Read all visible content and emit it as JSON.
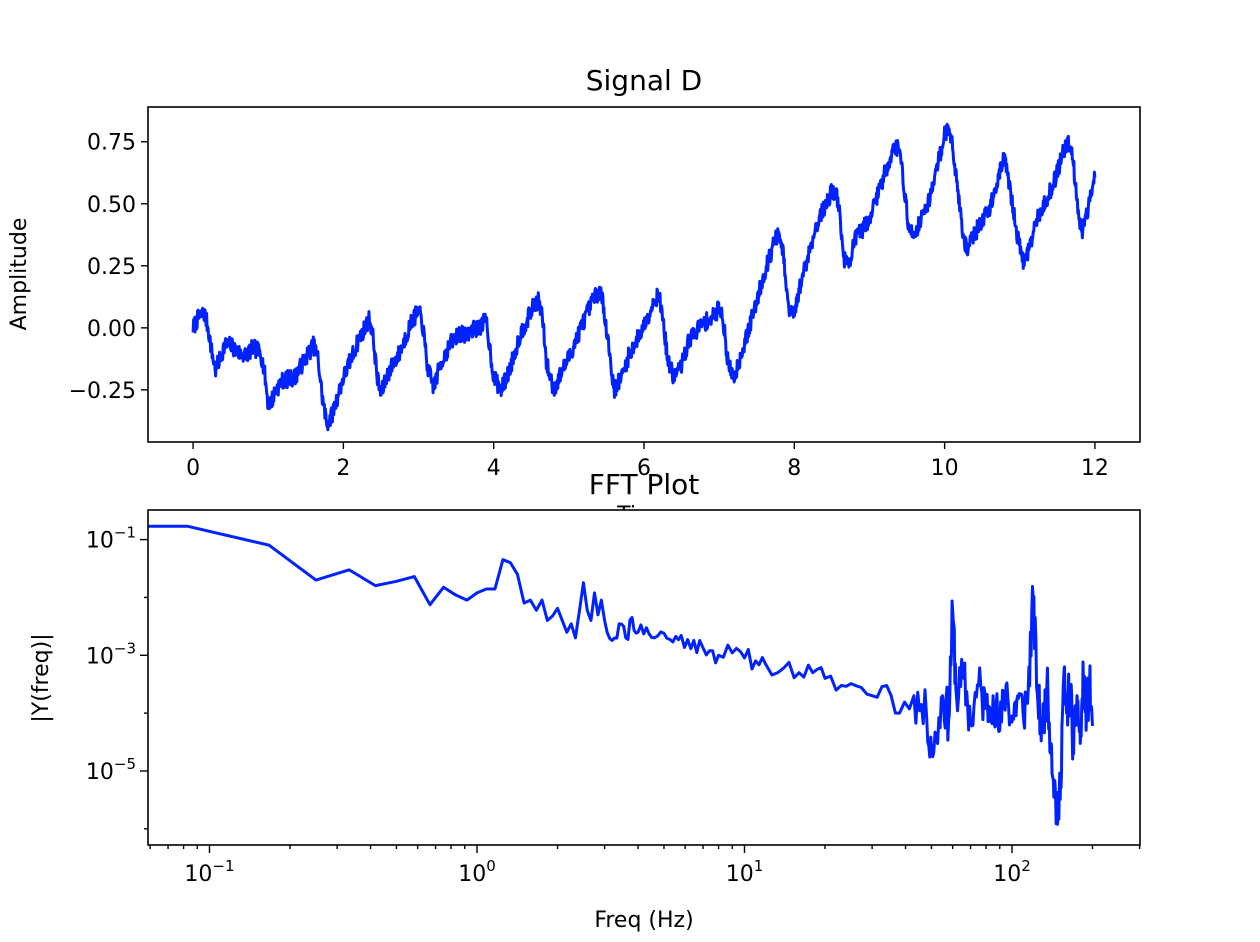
{
  "chart_data": [
    {
      "type": "line",
      "title": "Signal D",
      "xlabel": "Time",
      "ylabel": "Amplitude",
      "xlim": [
        -0.6,
        12.6
      ],
      "ylim": [
        -0.46,
        0.89
      ],
      "x_ticks": [
        0,
        2,
        4,
        6,
        8,
        10,
        12
      ],
      "x_tick_labels": [
        "0",
        "2",
        "4",
        "6",
        "8",
        "10",
        "12"
      ],
      "y_ticks": [
        -0.25,
        0,
        0.25,
        0.5,
        0.75
      ],
      "y_tick_labels": [
        "−0.25",
        "0.00",
        "0.25",
        "0.50",
        "0.75"
      ],
      "line_color": "#0022ff",
      "noise_band": 0.035,
      "series": [
        {
          "x": [
            0.0,
            0.07,
            0.15,
            0.2,
            0.25,
            0.3,
            0.35,
            0.42,
            0.5,
            0.6,
            0.7,
            0.8,
            0.9,
            0.95,
            1.0,
            1.05,
            1.1,
            1.2,
            1.35,
            1.5,
            1.6,
            1.66,
            1.72,
            1.78,
            1.85,
            2.0,
            2.2,
            2.35,
            2.4,
            2.45,
            2.5,
            2.57,
            2.65,
            2.75,
            2.9,
            3.0,
            3.05,
            3.12,
            3.2,
            3.3,
            3.45,
            3.55,
            3.6,
            3.7,
            3.8,
            3.9,
            4.0,
            4.1,
            4.2,
            4.35,
            4.55,
            4.6,
            4.65,
            4.7,
            4.8,
            4.9,
            5.0,
            5.2,
            5.35,
            5.42,
            5.48,
            5.55,
            5.6,
            5.7,
            5.8,
            6.0,
            6.15,
            6.2,
            6.25,
            6.32,
            6.4,
            6.5,
            6.6,
            6.75,
            6.95,
            7.0,
            7.05,
            7.12,
            7.2,
            7.3,
            7.4,
            7.6,
            7.75,
            7.8,
            7.85,
            7.92,
            8.0,
            8.1,
            8.3,
            8.5,
            8.55,
            8.6,
            8.66,
            8.72,
            8.8,
            9.0,
            9.2,
            9.33,
            9.4,
            9.45,
            9.52,
            9.6,
            9.8,
            10.0,
            10.05,
            10.1,
            10.2,
            10.25,
            10.3,
            10.4,
            10.6,
            10.75,
            10.8,
            10.85,
            10.95,
            11.05,
            11.1,
            11.25,
            11.45,
            11.6,
            11.65,
            11.7,
            11.77,
            11.82,
            11.9,
            12.0
          ],
          "y": [
            0.0,
            0.04,
            0.06,
            0.0,
            -0.1,
            -0.17,
            -0.13,
            -0.07,
            -0.07,
            -0.1,
            -0.11,
            -0.08,
            -0.1,
            -0.18,
            -0.31,
            -0.29,
            -0.25,
            -0.21,
            -0.2,
            -0.12,
            -0.07,
            -0.12,
            -0.28,
            -0.39,
            -0.35,
            -0.2,
            -0.05,
            0.04,
            -0.05,
            -0.2,
            -0.27,
            -0.2,
            -0.15,
            -0.1,
            0.02,
            0.07,
            0.02,
            -0.16,
            -0.24,
            -0.14,
            -0.05,
            -0.02,
            -0.03,
            -0.01,
            0.0,
            0.03,
            -0.2,
            -0.25,
            -0.18,
            -0.03,
            0.1,
            0.11,
            0.04,
            -0.14,
            -0.25,
            -0.18,
            -0.12,
            0.03,
            0.13,
            0.15,
            0.05,
            -0.12,
            -0.25,
            -0.2,
            -0.11,
            0.01,
            0.12,
            0.13,
            0.04,
            -0.14,
            -0.2,
            -0.15,
            -0.05,
            0.01,
            0.05,
            0.09,
            0.04,
            -0.15,
            -0.2,
            -0.1,
            0.0,
            0.22,
            0.36,
            0.37,
            0.3,
            0.08,
            0.05,
            0.2,
            0.42,
            0.55,
            0.55,
            0.47,
            0.28,
            0.25,
            0.35,
            0.44,
            0.62,
            0.73,
            0.72,
            0.6,
            0.4,
            0.38,
            0.52,
            0.78,
            0.8,
            0.75,
            0.5,
            0.35,
            0.32,
            0.38,
            0.48,
            0.65,
            0.68,
            0.6,
            0.4,
            0.26,
            0.3,
            0.45,
            0.58,
            0.73,
            0.75,
            0.7,
            0.5,
            0.38,
            0.46,
            0.63
          ]
        }
      ]
    },
    {
      "type": "line",
      "title": "FFT Plot",
      "xlabel": "Freq (Hz)",
      "ylabel": "|Y(freq)|",
      "x_scale": "log",
      "y_scale": "log",
      "xlim": [
        0.0589,
        301.0
      ],
      "ylim": [
        5.25e-07,
        0.325
      ],
      "x_ticks": [
        0.1,
        1,
        10,
        100
      ],
      "x_tick_labels": [
        {
          "base": "10",
          "exp": "−1"
        },
        {
          "base": "10",
          "exp": "0"
        },
        {
          "base": "10",
          "exp": "1"
        },
        {
          "base": "10",
          "exp": "2"
        }
      ],
      "y_ticks": [
        1e-05,
        0.001,
        0.1
      ],
      "y_tick_labels": [
        {
          "base": "10",
          "exp": "−5"
        },
        {
          "base": "10",
          "exp": "−3"
        },
        {
          "base": "10",
          "exp": "−1"
        }
      ],
      "line_color": "#0022ff",
      "series": [
        {
          "x": [
            0.0,
            0.083,
            0.167,
            0.25,
            0.333,
            0.417,
            0.5,
            0.583,
            0.667,
            0.75,
            0.833,
            0.917,
            1.0,
            1.083,
            1.167,
            1.25,
            1.333,
            1.417,
            1.5,
            1.583,
            1.667,
            1.75,
            1.833,
            1.917,
            2.0,
            2.083,
            2.167,
            2.25,
            2.333,
            2.417,
            2.5,
            2.583,
            2.667,
            2.75,
            2.833,
            2.917,
            3.0,
            3.2,
            3.4,
            3.6,
            3.8,
            4.0,
            4.3,
            4.6,
            5.0,
            5.4,
            5.8,
            6.3,
            6.8,
            7.4,
            8.0,
            9.0,
            10.0,
            11.0,
            12.0,
            14.0,
            16.0,
            18.0,
            20.0,
            23.0,
            26.0,
            30.0,
            34.0,
            38.0,
            43.0,
            48.0,
            51.0,
            55.0,
            58.0,
            60.0,
            62.0,
            66.0,
            70.0,
            75.0,
            80.0,
            85.0,
            90.0,
            95.0,
            100.0,
            105.0,
            110.0,
            115.0,
            120.0,
            125.0,
            130.0,
            135.0,
            140.0,
            144.0,
            148.0,
            152.0,
            156.0,
            160.0,
            165.0,
            170.0,
            175.0,
            180.0,
            185.0,
            190.0,
            195.0,
            200.0
          ],
          "y": [
            0.17,
            0.17,
            0.08,
            0.02,
            0.03,
            0.016,
            0.019,
            0.023,
            0.0075,
            0.015,
            0.011,
            0.009,
            0.012,
            0.014,
            0.014,
            0.045,
            0.04,
            0.025,
            0.008,
            0.009,
            0.006,
            0.009,
            0.004,
            0.0048,
            0.0065,
            0.004,
            0.0025,
            0.0035,
            0.002,
            0.006,
            0.018,
            0.006,
            0.004,
            0.012,
            0.005,
            0.009,
            0.004,
            0.0018,
            0.0035,
            0.002,
            0.0045,
            0.0025,
            0.003,
            0.002,
            0.0024,
            0.0017,
            0.0022,
            0.0013,
            0.0018,
            0.0012,
            0.001,
            0.0011,
            0.0009,
            0.0008,
            0.0007,
            0.0006,
            0.0005,
            0.0005,
            0.0004,
            0.0003,
            0.0003,
            0.0002,
            0.0003,
            0.0001,
            0.0002,
            8e-05,
            2.1e-05,
            0.0002,
            8e-05,
            0.006,
            0.0002,
            0.0004,
            7e-05,
            0.0003,
            0.00012,
            0.0002,
            5e-05,
            0.0003,
            7e-05,
            0.0002,
            0.0001,
            0.00025,
            0.01,
            0.00015,
            5e-05,
            0.0003,
            3e-05,
            6e-06,
            1.2e-06,
            8e-06,
            0.0004,
            0.0001,
            0.0003,
            2e-05,
            0.0002,
            3e-05,
            0.0004,
            0.0001,
            0.0003,
            6e-05
          ]
        }
      ]
    }
  ]
}
